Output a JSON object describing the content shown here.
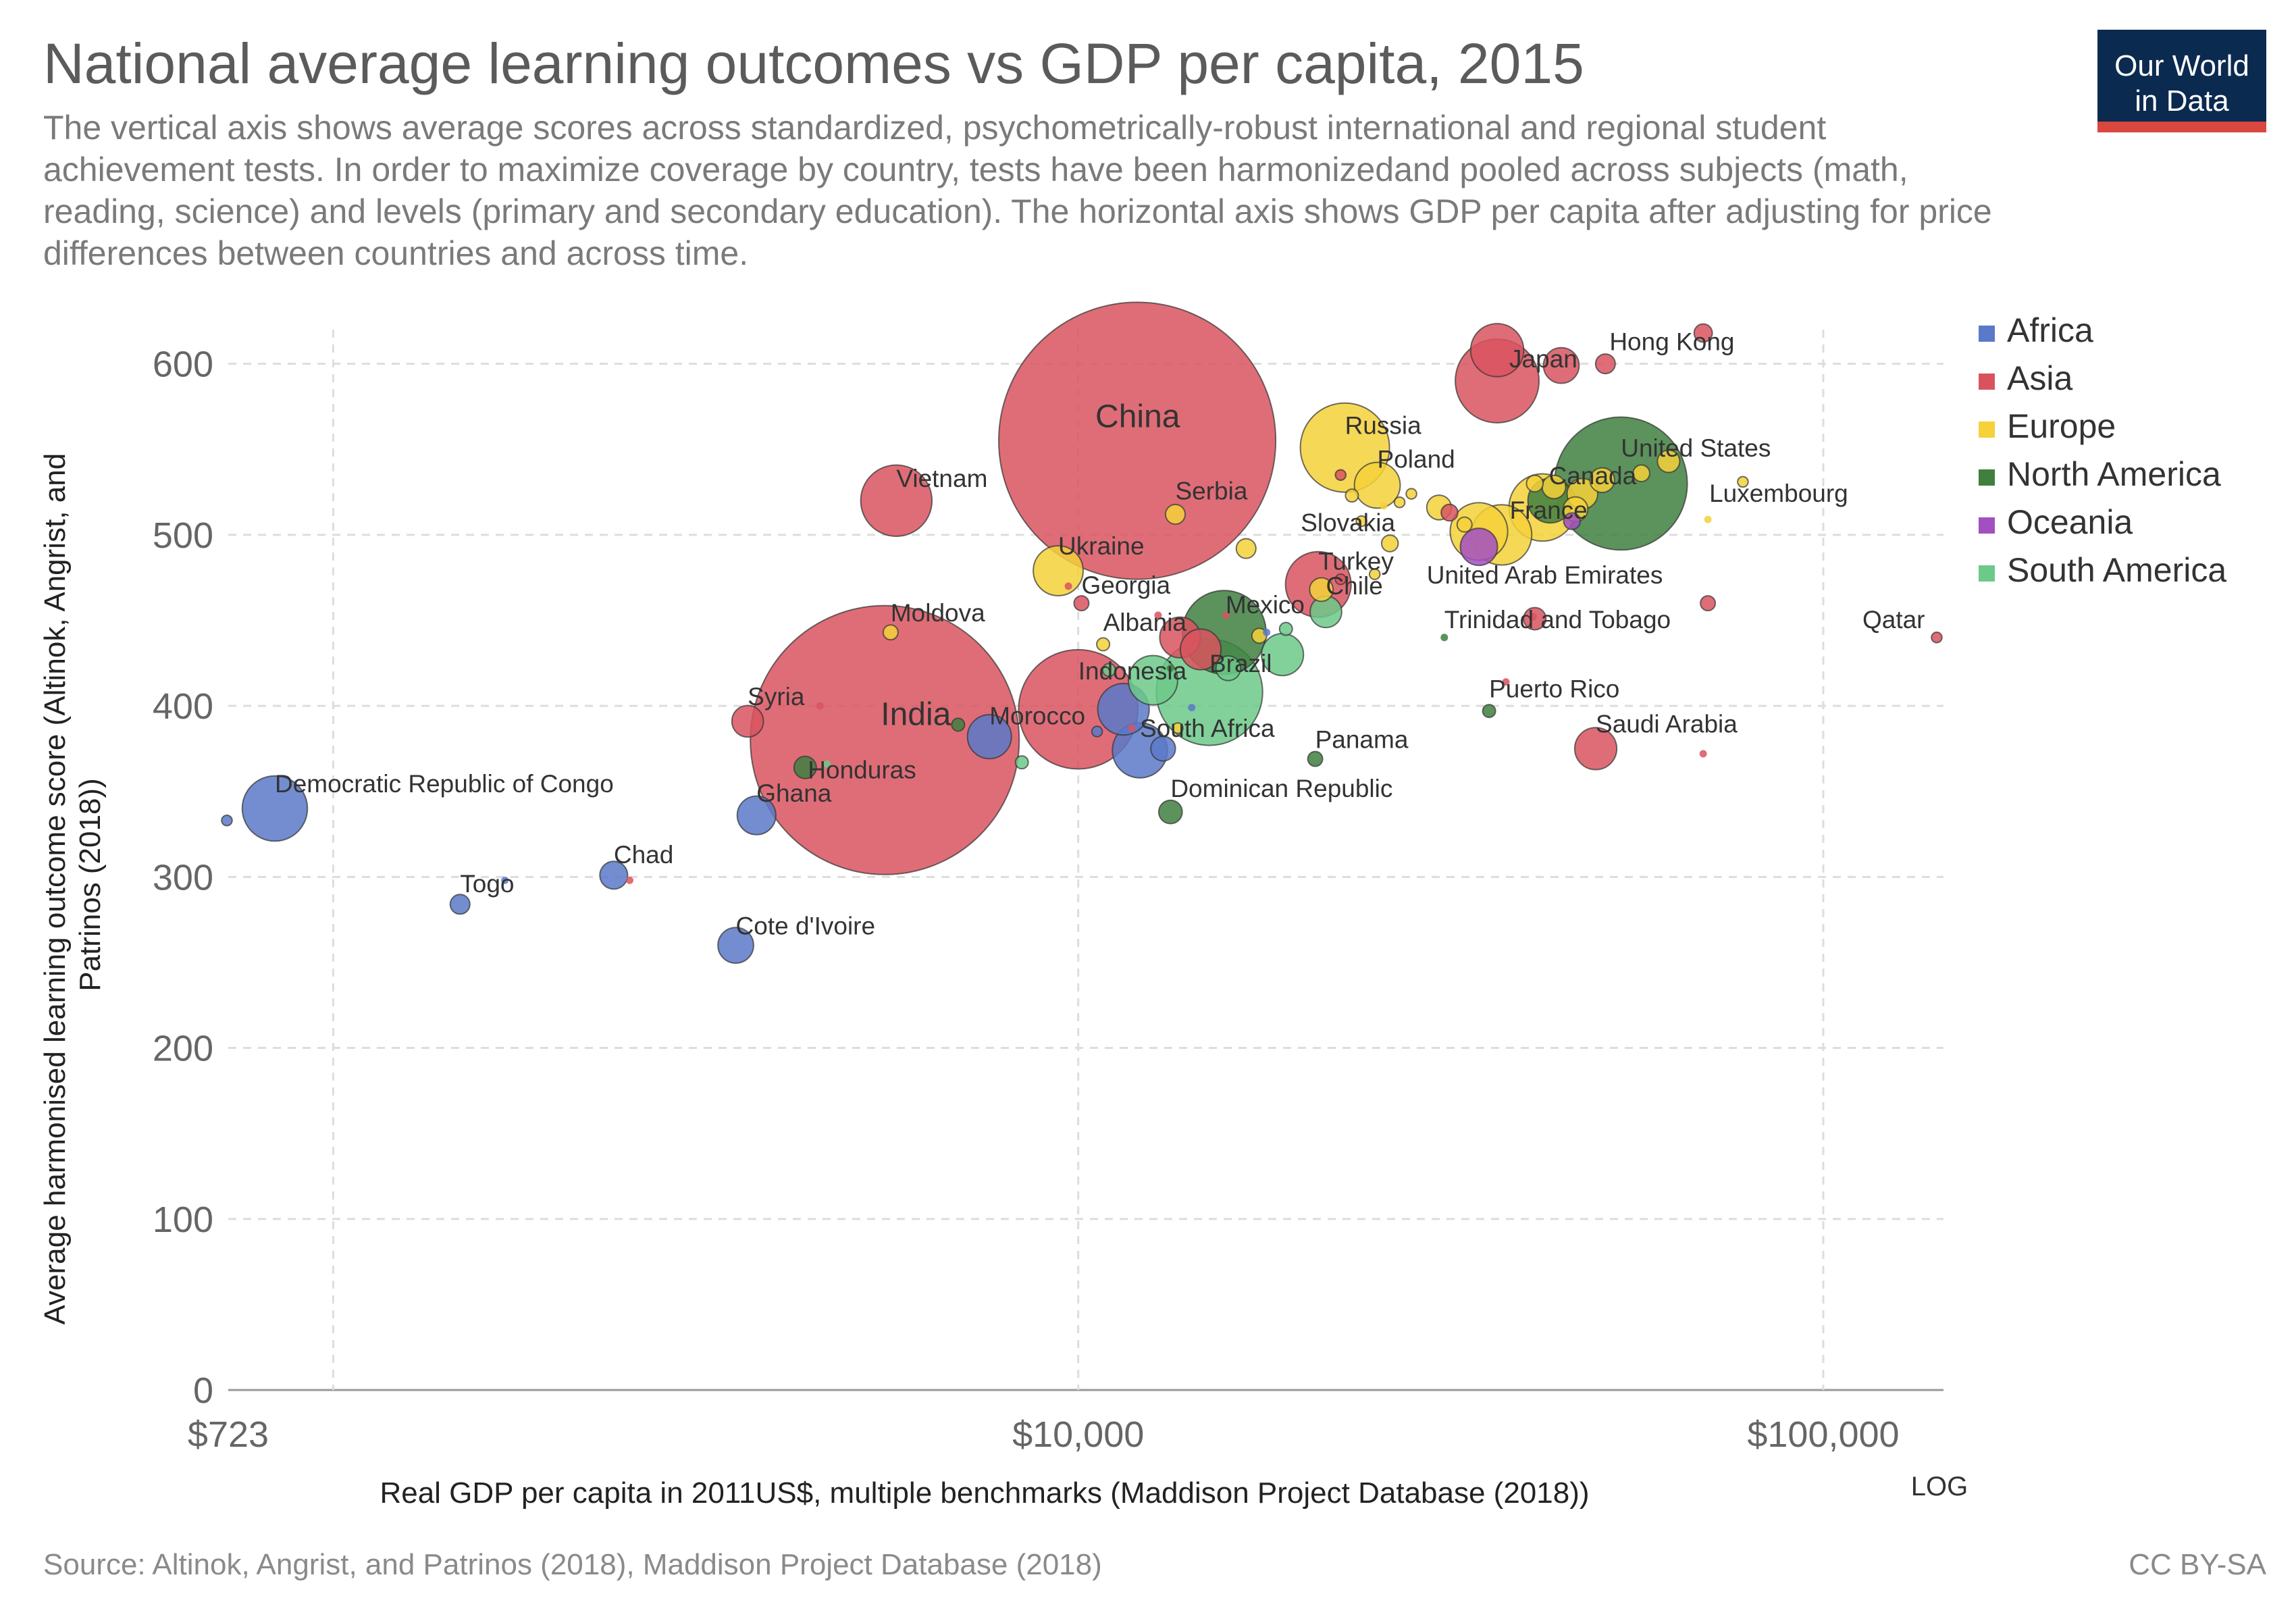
{
  "header": {
    "title": "National average learning outcomes vs GDP per capita, 2015",
    "subtitle": "The vertical axis shows average scores across standardized, psychometrically-robust international and regional student achievement tests. In order to maximize coverage by country, tests have been harmonizedand pooled across subjects (math, reading, science) and levels (primary and secondary education). The horizontal axis shows GDP per capita after adjusting for price differences between countries and across time.",
    "logo_line1": "Our World",
    "logo_line2": "in Data"
  },
  "footer": {
    "source": "Source: Altinok, Angrist, and Patrinos (2018), Maddison Project Database (2018)",
    "license": "CC BY-SA"
  },
  "colors": {
    "Africa": "#5b79c8",
    "Asia": "#d9535f",
    "Europe": "#f5d13a",
    "North America": "#3f7f3f",
    "Oceania": "#a24fc2",
    "South America": "#6cc98a"
  },
  "chart_data": {
    "type": "scatter",
    "title": "National average learning outcomes vs GDP per capita, 2015",
    "xlabel": "Real GDP per capita in 2011US$, multiple benchmarks (Maddison Project Database (2018))",
    "ylabel": "Average harmonised learning outcome score (Altinok, Angrist, and Patrinos (2018))",
    "x_scale": "log",
    "x_scale_label": "LOG",
    "xlim": [
      723,
      145000
    ],
    "ylim": [
      0,
      620
    ],
    "x_ticks": [
      {
        "value": 723,
        "label": "$723"
      },
      {
        "value": 10000,
        "label": "$10,000"
      },
      {
        "value": 100000,
        "label": "$100,000"
      }
    ],
    "y_ticks": [
      0,
      100,
      200,
      300,
      400,
      500,
      600
    ],
    "grid": true,
    "legend_position": "right",
    "legend": [
      "Africa",
      "Asia",
      "Europe",
      "North America",
      "Oceania",
      "South America"
    ],
    "size_encoding": "population",
    "points": [
      {
        "name": "China",
        "region": "Asia",
        "x": 12000,
        "y": 555,
        "size": 1390,
        "label": "China"
      },
      {
        "name": "India",
        "region": "Asia",
        "x": 5500,
        "y": 380,
        "size": 1310,
        "label": "India"
      },
      {
        "name": "Vietnam",
        "region": "Asia",
        "x": 5700,
        "y": 520,
        "size": 92,
        "label": "Vietnam"
      },
      {
        "name": "Japan",
        "region": "Asia",
        "x": 36500,
        "y": 590,
        "size": 127,
        "label": "Japan"
      },
      {
        "name": "Hong Kong",
        "region": "Asia",
        "x": 51000,
        "y": 600,
        "size": 7,
        "label": "Hong Kong"
      },
      {
        "name": "Russia",
        "region": "Europe",
        "x": 22800,
        "y": 551,
        "size": 144,
        "label": "Russia"
      },
      {
        "name": "Poland",
        "region": "Europe",
        "x": 25200,
        "y": 529,
        "size": 38,
        "label": "Poland"
      },
      {
        "name": "United States",
        "region": "North America",
        "x": 53500,
        "y": 530,
        "size": 320,
        "label": "United States"
      },
      {
        "name": "Canada",
        "region": "North America",
        "x": 43000,
        "y": 520,
        "size": 36,
        "label": "Canada"
      },
      {
        "name": "Luxembourg",
        "region": "Europe",
        "x": 70000,
        "y": 509,
        "size": 1,
        "label": "Luxembourg"
      },
      {
        "name": "Serbia",
        "region": "Europe",
        "x": 13500,
        "y": 512,
        "size": 7,
        "label": "Serbia"
      },
      {
        "name": "Slovakia",
        "region": "Europe",
        "x": 26200,
        "y": 495,
        "size": 5,
        "label": "Slovakia"
      },
      {
        "name": "France",
        "region": "Europe",
        "x": 37000,
        "y": 500,
        "size": 66,
        "label": "France"
      },
      {
        "name": "Ukraine",
        "region": "Europe",
        "x": 9400,
        "y": 479,
        "size": 45,
        "label": "Ukraine"
      },
      {
        "name": "Georgia",
        "region": "Asia",
        "x": 10100,
        "y": 460,
        "size": 4,
        "label": "Georgia"
      },
      {
        "name": "Turkey",
        "region": "Asia",
        "x": 21000,
        "y": 471,
        "size": 78,
        "label": "Turkey"
      },
      {
        "name": "Chile",
        "region": "South America",
        "x": 21500,
        "y": 455,
        "size": 18,
        "label": "Chile"
      },
      {
        "name": "Mexico",
        "region": "North America",
        "x": 15700,
        "y": 443,
        "size": 127,
        "label": "Mexico"
      },
      {
        "name": "Albania",
        "region": "Europe",
        "x": 10800,
        "y": 436,
        "size": 3,
        "label": "Albania"
      },
      {
        "name": "Moldova",
        "region": "Europe",
        "x": 5600,
        "y": 443,
        "size": 4,
        "label": "Moldova"
      },
      {
        "name": "Brazil",
        "region": "South America",
        "x": 15000,
        "y": 408,
        "size": 205,
        "label": "Brazil"
      },
      {
        "name": "Indonesia",
        "region": "Asia",
        "x": 10000,
        "y": 398,
        "size": 258,
        "label": "Indonesia"
      },
      {
        "name": "United Arab Emirates",
        "region": "Asia",
        "x": 41000,
        "y": 451,
        "size": 9,
        "label": "United Arab Emirates"
      },
      {
        "name": "Trinidad and Tobago",
        "region": "North America",
        "x": 31000,
        "y": 440,
        "size": 1,
        "label": "Trinidad and Tobago"
      },
      {
        "name": "Qatar",
        "region": "Asia",
        "x": 142000,
        "y": 440,
        "size": 2,
        "label": "Qatar"
      },
      {
        "name": "Syria",
        "region": "Asia",
        "x": 3600,
        "y": 391,
        "size": 18,
        "label": "Syria"
      },
      {
        "name": "Morocco",
        "region": "Africa",
        "x": 7600,
        "y": 382,
        "size": 35,
        "label": "Morocco"
      },
      {
        "name": "South Africa",
        "region": "Africa",
        "x": 12100,
        "y": 374,
        "size": 55,
        "label": "South Africa"
      },
      {
        "name": "Honduras",
        "region": "North America",
        "x": 4300,
        "y": 364,
        "size": 9,
        "label": "Honduras"
      },
      {
        "name": "Puerto Rico",
        "region": "North America",
        "x": 35600,
        "y": 397,
        "size": 3,
        "label": "Puerto Rico"
      },
      {
        "name": "Saudi Arabia",
        "region": "Asia",
        "x": 49500,
        "y": 375,
        "size": 32,
        "label": "Saudi Arabia"
      },
      {
        "name": "Panama",
        "region": "North America",
        "x": 20800,
        "y": 369,
        "size": 4,
        "label": "Panama"
      },
      {
        "name": "Democratic Republic of Congo",
        "region": "Africa",
        "x": 835,
        "y": 340,
        "size": 77,
        "label": "Democratic Republic of Congo"
      },
      {
        "name": "Ghana",
        "region": "Africa",
        "x": 3700,
        "y": 336,
        "size": 27,
        "label": "Ghana"
      },
      {
        "name": "Dominican Republic",
        "region": "North America",
        "x": 13300,
        "y": 338,
        "size": 10,
        "label": "Dominican Republic"
      },
      {
        "name": "Chad",
        "region": "Africa",
        "x": 2380,
        "y": 301,
        "size": 14,
        "label": "Chad"
      },
      {
        "name": "Togo",
        "region": "Africa",
        "x": 1480,
        "y": 284,
        "size": 7,
        "label": "Togo"
      },
      {
        "name": "Cote d'Ivoire",
        "region": "Africa",
        "x": 3470,
        "y": 260,
        "size": 23,
        "label": "Cote d'Ivoire"
      },
      {
        "name": "",
        "region": "Asia",
        "x": 69000,
        "y": 618,
        "size": 6,
        "label": ""
      },
      {
        "name": "",
        "region": "Asia",
        "x": 36500,
        "y": 608,
        "size": 51,
        "label": ""
      },
      {
        "name": "",
        "region": "Asia",
        "x": 44500,
        "y": 599,
        "size": 23,
        "label": ""
      },
      {
        "name": "",
        "region": "Asia",
        "x": 70000,
        "y": 460,
        "size": 4,
        "label": ""
      },
      {
        "name": "",
        "region": "Asia",
        "x": 69000,
        "y": 372,
        "size": 1,
        "label": ""
      },
      {
        "name": "",
        "region": "Europe",
        "x": 62000,
        "y": 543,
        "size": 9,
        "label": ""
      },
      {
        "name": "",
        "region": "Europe",
        "x": 78000,
        "y": 531,
        "size": 2,
        "label": ""
      },
      {
        "name": "",
        "region": "Europe",
        "x": 41000,
        "y": 530,
        "size": 5,
        "label": ""
      },
      {
        "name": "",
        "region": "Europe",
        "x": 43500,
        "y": 528,
        "size": 10,
        "label": ""
      },
      {
        "name": "",
        "region": "Europe",
        "x": 47500,
        "y": 524,
        "size": 17,
        "label": ""
      },
      {
        "name": "",
        "region": "Europe",
        "x": 50500,
        "y": 532,
        "size": 11,
        "label": ""
      },
      {
        "name": "",
        "region": "Europe",
        "x": 57000,
        "y": 536,
        "size": 5,
        "label": ""
      },
      {
        "name": "",
        "region": "Europe",
        "x": 46500,
        "y": 515,
        "size": 11,
        "label": ""
      },
      {
        "name": "",
        "region": "Europe",
        "x": 42000,
        "y": 516,
        "size": 82,
        "label": ""
      },
      {
        "name": "",
        "region": "Europe",
        "x": 34500,
        "y": 502,
        "size": 60,
        "label": ""
      },
      {
        "name": "",
        "region": "Europe",
        "x": 33000,
        "y": 506,
        "size": 4,
        "label": ""
      },
      {
        "name": "",
        "region": "Europe",
        "x": 28000,
        "y": 524,
        "size": 2,
        "label": ""
      },
      {
        "name": "",
        "region": "Europe",
        "x": 27000,
        "y": 519,
        "size": 2,
        "label": ""
      },
      {
        "name": "",
        "region": "Europe",
        "x": 25700,
        "y": 517,
        "size": 1,
        "label": ""
      },
      {
        "name": "",
        "region": "Europe",
        "x": 23300,
        "y": 523,
        "size": 3,
        "label": ""
      },
      {
        "name": "",
        "region": "Europe",
        "x": 30500,
        "y": 516,
        "size": 11,
        "label": ""
      },
      {
        "name": "",
        "region": "Europe",
        "x": 24000,
        "y": 508,
        "size": 2,
        "label": ""
      },
      {
        "name": "",
        "region": "Europe",
        "x": 16800,
        "y": 492,
        "size": 7,
        "label": ""
      },
      {
        "name": "",
        "region": "Europe",
        "x": 21200,
        "y": 468,
        "size": 10,
        "label": ""
      },
      {
        "name": "",
        "region": "Europe",
        "x": 17500,
        "y": 441,
        "size": 4,
        "label": ""
      },
      {
        "name": "",
        "region": "Europe",
        "x": 25000,
        "y": 477,
        "size": 2,
        "label": ""
      },
      {
        "name": "",
        "region": "Europe",
        "x": 13600,
        "y": 387,
        "size": 2,
        "label": ""
      },
      {
        "name": "",
        "region": "Asia",
        "x": 31500,
        "y": 513,
        "size": 5,
        "label": ""
      },
      {
        "name": "",
        "region": "Asia",
        "x": 22500,
        "y": 535,
        "size": 2,
        "label": ""
      },
      {
        "name": "",
        "region": "Asia",
        "x": 22500,
        "y": 474,
        "size": 2,
        "label": ""
      },
      {
        "name": "",
        "region": "Asia",
        "x": 13700,
        "y": 440,
        "size": 30,
        "label": ""
      },
      {
        "name": "",
        "region": "Asia",
        "x": 14600,
        "y": 433,
        "size": 30,
        "label": ""
      },
      {
        "name": "",
        "region": "Asia",
        "x": 12800,
        "y": 453,
        "size": 1,
        "label": ""
      },
      {
        "name": "",
        "region": "Asia",
        "x": 9700,
        "y": 470,
        "size": 1,
        "label": ""
      },
      {
        "name": "",
        "region": "Asia",
        "x": 15800,
        "y": 453,
        "size": 1,
        "label": ""
      },
      {
        "name": "",
        "region": "Asia",
        "x": 4500,
        "y": 400,
        "size": 1,
        "label": ""
      },
      {
        "name": "",
        "region": "Asia",
        "x": 11800,
        "y": 387,
        "size": 1,
        "label": ""
      },
      {
        "name": "",
        "region": "Asia",
        "x": 2500,
        "y": 298,
        "size": 1,
        "label": ""
      },
      {
        "name": "",
        "region": "Asia",
        "x": 37500,
        "y": 414,
        "size": 1,
        "label": ""
      },
      {
        "name": "",
        "region": "Asia",
        "x": 40800,
        "y": 452,
        "size": 1,
        "label": ""
      },
      {
        "name": "",
        "region": "North America",
        "x": 13300,
        "y": 422,
        "size": 1,
        "label": ""
      },
      {
        "name": "",
        "region": "North America",
        "x": 6900,
        "y": 389,
        "size": 3,
        "label": ""
      },
      {
        "name": "",
        "region": "Oceania",
        "x": 46000,
        "y": 508,
        "size": 5,
        "label": ""
      },
      {
        "name": "",
        "region": "Oceania",
        "x": 34500,
        "y": 493,
        "size": 25,
        "label": ""
      },
      {
        "name": "",
        "region": "South America",
        "x": 18800,
        "y": 430,
        "size": 32,
        "label": ""
      },
      {
        "name": "",
        "region": "South America",
        "x": 19000,
        "y": 445,
        "size": 3,
        "label": ""
      },
      {
        "name": "",
        "region": "South America",
        "x": 15900,
        "y": 422,
        "size": 11,
        "label": ""
      },
      {
        "name": "",
        "region": "South America",
        "x": 12600,
        "y": 415,
        "size": 44,
        "label": ""
      },
      {
        "name": "",
        "region": "South America",
        "x": 11000,
        "y": 421,
        "size": 3,
        "label": ""
      },
      {
        "name": "",
        "region": "South America",
        "x": 8400,
        "y": 367,
        "size": 3,
        "label": ""
      },
      {
        "name": "",
        "region": "South America",
        "x": 4600,
        "y": 366,
        "size": 1,
        "label": ""
      },
      {
        "name": "",
        "region": "Africa",
        "x": 11500,
        "y": 398,
        "size": 48,
        "label": ""
      },
      {
        "name": "",
        "region": "Africa",
        "x": 13000,
        "y": 375,
        "size": 11,
        "label": ""
      },
      {
        "name": "",
        "region": "Africa",
        "x": 10600,
        "y": 385,
        "size": 2,
        "label": ""
      },
      {
        "name": "",
        "region": "Africa",
        "x": 14200,
        "y": 399,
        "size": 1,
        "label": ""
      },
      {
        "name": "",
        "region": "Africa",
        "x": 17900,
        "y": 443,
        "size": 1,
        "label": ""
      },
      {
        "name": "",
        "region": "Africa",
        "x": 720,
        "y": 333,
        "size": 2,
        "label": ""
      },
      {
        "name": "",
        "region": "Africa",
        "x": 1700,
        "y": 298,
        "size": 1,
        "label": ""
      }
    ]
  }
}
